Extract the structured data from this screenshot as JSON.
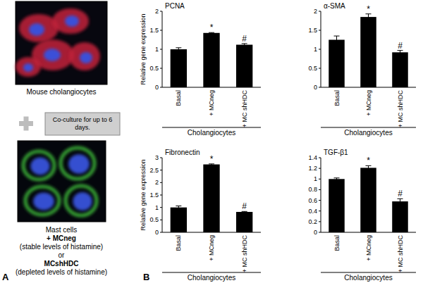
{
  "panel_a": {
    "label": "A",
    "top_image_caption": "Mouse cholangiocytes",
    "step": "Co-culture for up to 6 days.",
    "bottom_image_caption": [
      "Mast cells",
      "+ MCneg",
      "(stable levels of histamine)",
      "or",
      "MCshHDC",
      "(depleted levels of histamine)"
    ]
  },
  "panel_b": {
    "label": "B"
  },
  "chart_data": [
    {
      "type": "bar",
      "title": "PCNA",
      "y_label": "Relative gene expression",
      "categories": [
        "Basal",
        "+ MCneg",
        "+ MC shHDC"
      ],
      "values": [
        1.0,
        1.43,
        1.12
      ],
      "errors": [
        0.04,
        0.01,
        0.03
      ],
      "significance": [
        null,
        "*",
        "#"
      ],
      "group_label": "Cholangiocytes",
      "color": "#000000",
      "ylim": [
        0,
        2
      ],
      "yticks": [
        0,
        0.5,
        1,
        1.5,
        2
      ]
    },
    {
      "type": "bar",
      "title": "α-SMA",
      "categories": [
        "Basal",
        "+ MCneg",
        "+ MC shHDC"
      ],
      "values": [
        1.25,
        1.85,
        0.92
      ],
      "errors": [
        0.1,
        0.08,
        0.05
      ],
      "significance": [
        null,
        "*",
        "#"
      ],
      "group_label": "Cholangiocytes",
      "color": "#000000",
      "ylim": [
        0,
        2
      ],
      "yticks": [
        0,
        0.5,
        1,
        1.5,
        2
      ]
    },
    {
      "type": "bar",
      "title": "Fibronectin",
      "y_label": "Relative gene expression",
      "categories": [
        "Basal",
        "+ MCneg",
        "+ MC shHDC"
      ],
      "values": [
        1.0,
        2.73,
        0.82
      ],
      "errors": [
        0.06,
        0.02,
        0.02
      ],
      "significance": [
        null,
        "*",
        "#"
      ],
      "group_label": "Cholangiocytes",
      "color": "#000000",
      "ylim": [
        0,
        3
      ],
      "yticks": [
        0,
        0.5,
        1,
        1.5,
        2,
        2.5,
        3
      ]
    },
    {
      "type": "bar",
      "title": "TGF-β1",
      "categories": [
        "Basal",
        "+ MCneg",
        "+ MC shHDC"
      ],
      "values": [
        1.0,
        1.21,
        0.58
      ],
      "errors": [
        0.02,
        0.04,
        0.05
      ],
      "significance": [
        null,
        "*",
        "#"
      ],
      "group_label": "Cholangiocytes",
      "color": "#000000",
      "ylim": [
        0,
        1.4
      ],
      "yticks": [
        0,
        0.2,
        0.4,
        0.6,
        0.8,
        1,
        1.2,
        1.4
      ]
    }
  ]
}
